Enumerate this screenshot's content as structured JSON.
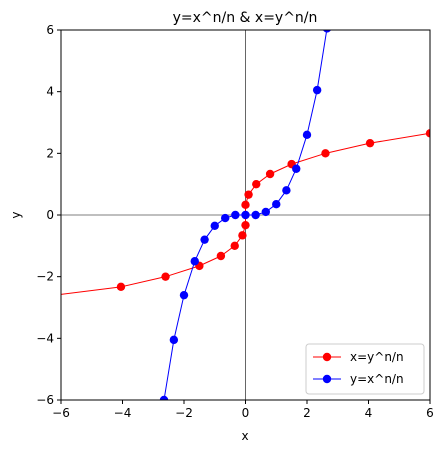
{
  "chart_data": {
    "type": "line",
    "title": "y=x^n/n & x=y^n/n",
    "xlabel": "x",
    "ylabel": "y",
    "xlim": [
      -6,
      6
    ],
    "ylim": [
      -6,
      6
    ],
    "xticks": [
      -6,
      -4,
      -2,
      0,
      2,
      4,
      6
    ],
    "yticks": [
      -6,
      -4,
      -2,
      0,
      2,
      4,
      6
    ],
    "xtick_labels": [
      "−6",
      "−4",
      "−2",
      "0",
      "2",
      "4",
      "6"
    ],
    "ytick_labels": [
      "−6",
      "−4",
      "−2",
      "0",
      "2",
      "4",
      "6"
    ],
    "grid": false,
    "axis_lines_at_zero": true,
    "legend_position": "lower-right",
    "series": [
      {
        "name": "x=y^n/n",
        "color": "#ff0000",
        "marker": "circle",
        "x": [
          -7.0,
          -4.05,
          -2.6,
          -1.5,
          -0.8,
          -0.35,
          -0.1,
          0.0,
          0.0,
          0.1,
          0.35,
          0.8,
          1.5,
          2.6,
          4.05,
          6.0
        ],
        "y": [
          -2.7,
          -2.33,
          -2.0,
          -1.65,
          -1.33,
          -1.0,
          -0.66,
          -0.33,
          0.33,
          0.66,
          1.0,
          1.33,
          1.65,
          2.0,
          2.33,
          2.65
        ]
      },
      {
        "name": "y=x^n/n",
        "color": "#0000ff",
        "marker": "circle",
        "x": [
          -2.65,
          -2.33,
          -2.0,
          -1.65,
          -1.33,
          -1.0,
          -0.66,
          -0.33,
          0.0,
          0.33,
          0.66,
          1.0,
          1.33,
          1.65,
          2.0,
          2.33,
          2.65
        ],
        "y": [
          -6.0,
          -4.05,
          -2.6,
          -1.5,
          -0.8,
          -0.35,
          -0.1,
          0.0,
          0.0,
          0.0,
          0.1,
          0.35,
          0.8,
          1.5,
          2.6,
          4.05,
          6.05
        ]
      }
    ]
  }
}
